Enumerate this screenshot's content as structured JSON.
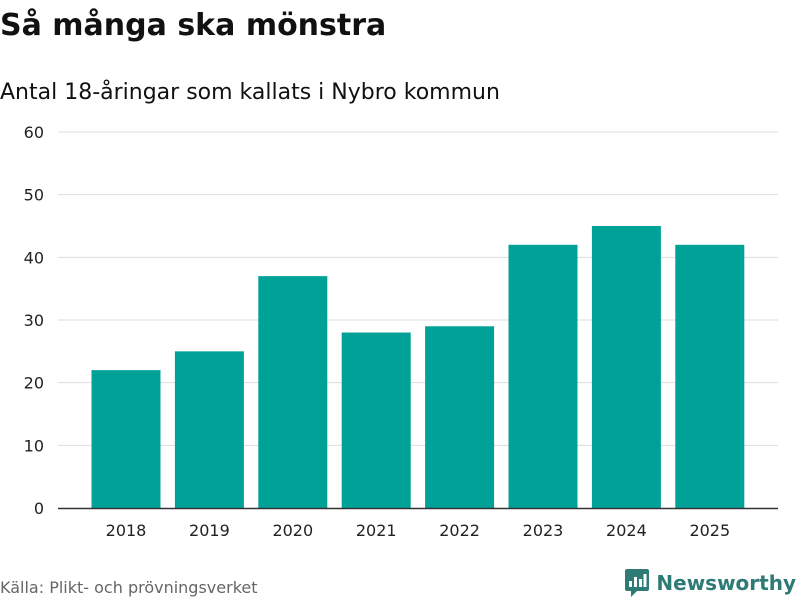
{
  "title": "Så många ska mönstra",
  "subtitle": "Antal 18-åringar som kallats i Nybro kommun",
  "source": "Källa: Plikt- och prövningsverket",
  "brand": {
    "name": "Newsworthy",
    "icon": "newsworthy-logo-icon",
    "color": "#2e7b76"
  },
  "chart_data": {
    "type": "bar",
    "categories": [
      "2018",
      "2019",
      "2020",
      "2021",
      "2022",
      "2023",
      "2024",
      "2025"
    ],
    "values": [
      22,
      25,
      37,
      28,
      29,
      42,
      45,
      42
    ],
    "ylim": [
      0,
      60
    ],
    "yticks": [
      0,
      10,
      20,
      30,
      40,
      50,
      60
    ],
    "xlabel": "",
    "ylabel": "",
    "grid": true,
    "bar_color": "#00a298",
    "grid_color": "#dddddd",
    "axis_color": "#333333"
  }
}
